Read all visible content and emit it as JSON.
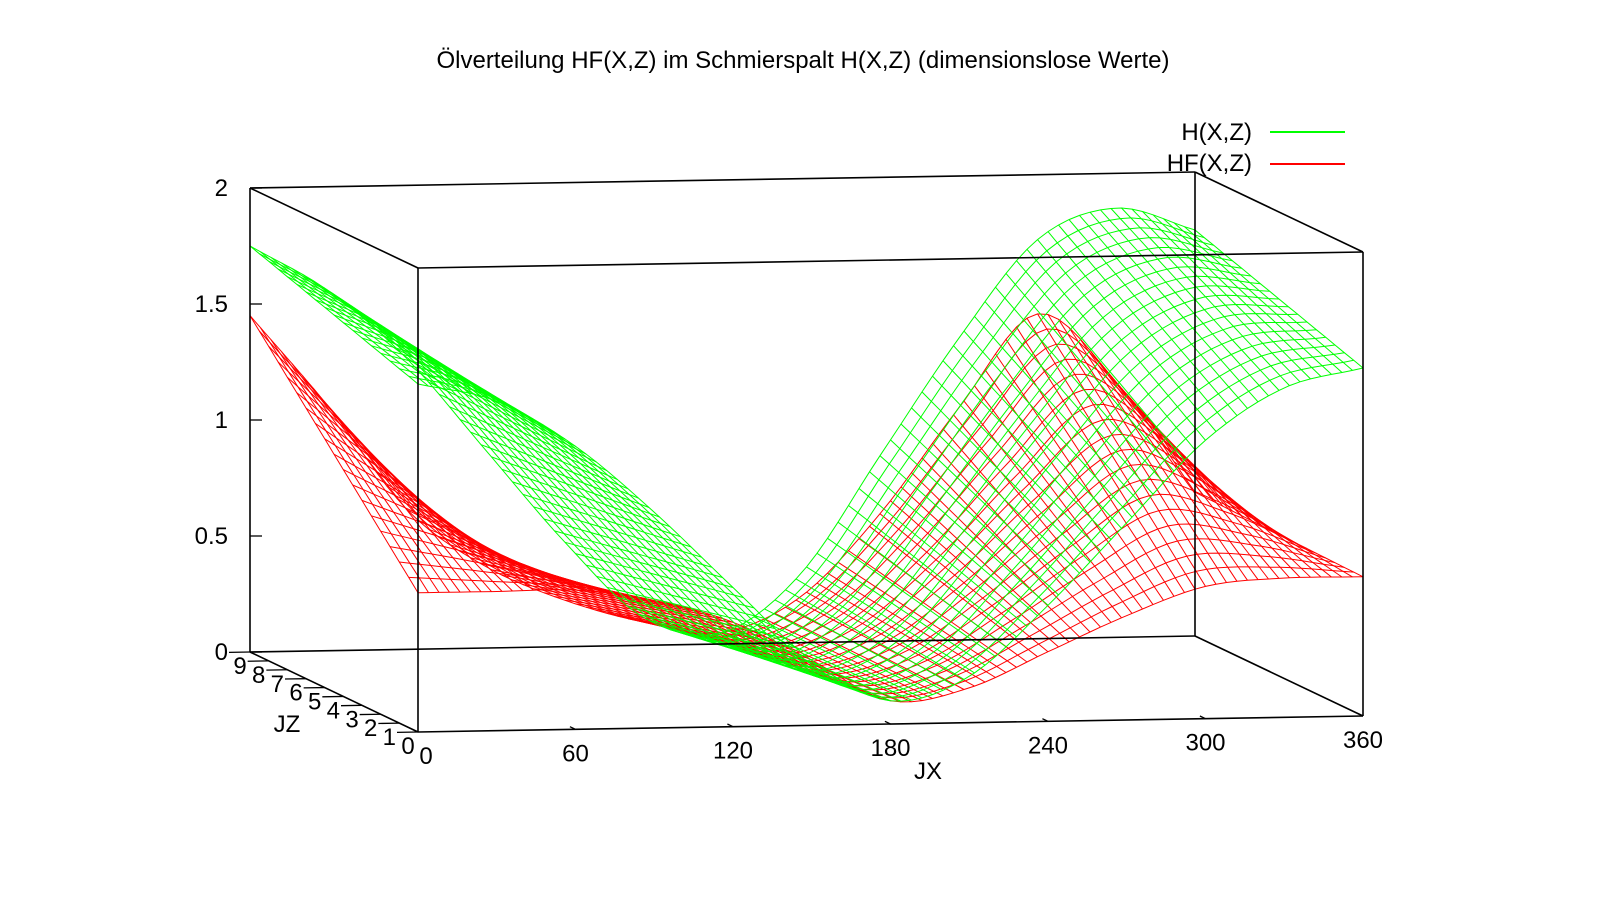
{
  "chart_data": {
    "type": "surface",
    "title": "Ölverteilung HF(X,Z) im Schmierspalt H(X,Z) (dimensionslose Werte)",
    "xlabel": "JX",
    "zlabel_depth": "JZ",
    "ylabel": "",
    "x_range": [
      0,
      360
    ],
    "depth_range": [
      0,
      9
    ],
    "y_range": [
      0,
      2
    ],
    "x_ticks": [
      "0",
      "60",
      "120",
      "180",
      "240",
      "300",
      "360"
    ],
    "depth_ticks": [
      "0",
      "1",
      "2",
      "3",
      "4",
      "5",
      "6",
      "7",
      "8",
      "9"
    ],
    "y_ticks": [
      "0",
      "0.5",
      "1",
      "1.5",
      "2"
    ],
    "legend_position": "top-right",
    "colors": {
      "H": "#00ff00",
      "HF": "#ff0000",
      "frame": "#000000"
    },
    "series": [
      {
        "name": "H(X,Z)",
        "color": "#00ff00",
        "x": [
          0,
          30,
          60,
          90,
          120,
          150,
          180,
          210,
          240,
          270,
          300,
          330,
          360
        ],
        "values_jz0": [
          1.5,
          1.42,
          1.22,
          0.93,
          0.6,
          0.28,
          0.1,
          0.2,
          0.5,
          0.85,
          1.2,
          1.42,
          1.5
        ],
        "values_jz9": [
          1.75,
          1.55,
          1.25,
          0.85,
          0.45,
          0.12,
          0.05,
          0.3,
          0.8,
          1.3,
          1.72,
          1.85,
          1.75
        ]
      },
      {
        "name": "HF(X,Z)",
        "color": "#ff0000",
        "x": [
          0,
          30,
          60,
          90,
          120,
          150,
          180,
          210,
          240,
          270,
          300,
          330,
          360
        ],
        "values_jz0": [
          0.6,
          0.6,
          0.6,
          0.55,
          0.45,
          0.28,
          0.1,
          0.15,
          0.3,
          0.45,
          0.57,
          0.6,
          0.6
        ],
        "values_jz9": [
          1.45,
          1.05,
          0.6,
          0.35,
          0.2,
          0.1,
          0.05,
          0.2,
          0.55,
          1.0,
          1.4,
          1.1,
          0.62
        ]
      }
    ]
  }
}
